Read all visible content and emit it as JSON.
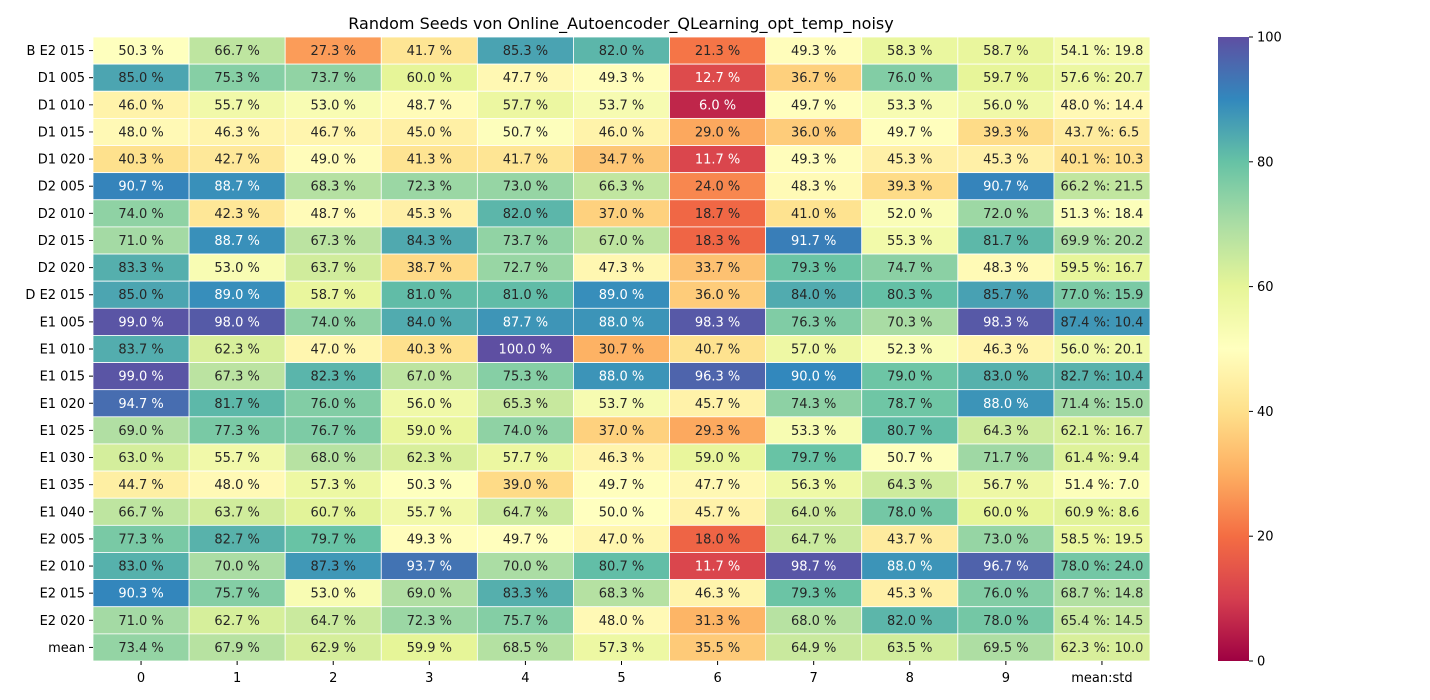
{
  "chart_data": {
    "type": "heatmap",
    "title": "Random Seeds von Online_Autoencoder_QLearning_opt_temp_noisy",
    "xlabel": "",
    "ylabel": "",
    "columns": [
      "0",
      "1",
      "2",
      "3",
      "4",
      "5",
      "6",
      "7",
      "8",
      "9",
      "mean:std"
    ],
    "rows": [
      "B E2 015",
      "D1 005",
      "D1 010",
      "D1 015",
      "D1 020",
      "D2 005",
      "D2 010",
      "D2 015",
      "D2 020",
      "D E2 015",
      "E1 005",
      "E1 010",
      "E1 015",
      "E1 020",
      "E1 025",
      "E1 030",
      "E1 035",
      "E1 040",
      "E2 005",
      "E2 010",
      "E2 015",
      "E2 020",
      "mean"
    ],
    "values": [
      [
        50.3,
        66.7,
        27.3,
        41.7,
        85.3,
        82.0,
        21.3,
        49.3,
        58.3,
        58.7,
        54.1
      ],
      [
        85.0,
        75.3,
        73.7,
        60.0,
        47.7,
        49.3,
        12.7,
        36.7,
        76.0,
        59.7,
        57.6
      ],
      [
        46.0,
        55.7,
        53.0,
        48.7,
        57.7,
        53.7,
        6.0,
        49.7,
        53.3,
        56.0,
        48.0
      ],
      [
        48.0,
        46.3,
        46.7,
        45.0,
        50.7,
        46.0,
        29.0,
        36.0,
        49.7,
        39.3,
        43.7
      ],
      [
        40.3,
        42.7,
        49.0,
        41.3,
        41.7,
        34.7,
        11.7,
        49.3,
        45.3,
        45.3,
        40.1
      ],
      [
        90.7,
        88.7,
        68.3,
        72.3,
        73.0,
        66.3,
        24.0,
        48.3,
        39.3,
        90.7,
        66.2
      ],
      [
        74.0,
        42.3,
        48.7,
        45.3,
        82.0,
        37.0,
        18.7,
        41.0,
        52.0,
        72.0,
        51.3
      ],
      [
        71.0,
        88.7,
        67.3,
        84.3,
        73.7,
        67.0,
        18.3,
        91.7,
        55.3,
        81.7,
        69.9
      ],
      [
        83.3,
        53.0,
        63.7,
        38.7,
        72.7,
        47.3,
        33.7,
        79.3,
        74.7,
        48.3,
        59.5
      ],
      [
        85.0,
        89.0,
        58.7,
        81.0,
        81.0,
        89.0,
        36.0,
        84.0,
        80.3,
        85.7,
        77.0
      ],
      [
        99.0,
        98.0,
        74.0,
        84.0,
        87.7,
        88.0,
        98.3,
        76.3,
        70.3,
        98.3,
        87.4
      ],
      [
        83.7,
        62.3,
        47.0,
        40.3,
        100.0,
        30.7,
        40.7,
        57.0,
        52.3,
        46.3,
        56.0
      ],
      [
        99.0,
        67.3,
        82.3,
        67.0,
        75.3,
        88.0,
        96.3,
        90.0,
        79.0,
        83.0,
        82.7
      ],
      [
        94.7,
        81.7,
        76.0,
        56.0,
        65.3,
        53.7,
        45.7,
        74.3,
        78.7,
        88.0,
        71.4
      ],
      [
        69.0,
        77.3,
        76.7,
        59.0,
        74.0,
        37.0,
        29.3,
        53.3,
        80.7,
        64.3,
        62.1
      ],
      [
        63.0,
        55.7,
        68.0,
        62.3,
        57.7,
        46.3,
        59.0,
        79.7,
        50.7,
        71.7,
        61.4
      ],
      [
        44.7,
        48.0,
        57.3,
        50.3,
        39.0,
        49.7,
        47.7,
        56.3,
        64.3,
        56.7,
        51.4
      ],
      [
        66.7,
        63.7,
        60.7,
        55.7,
        64.7,
        50.0,
        45.7,
        64.0,
        78.0,
        60.0,
        60.9
      ],
      [
        77.3,
        82.7,
        79.7,
        49.3,
        49.7,
        47.0,
        18.0,
        64.7,
        43.7,
        73.0,
        58.5
      ],
      [
        83.0,
        70.0,
        87.3,
        93.7,
        70.0,
        80.7,
        11.7,
        98.7,
        88.0,
        96.7,
        78.0
      ],
      [
        90.3,
        75.7,
        53.0,
        69.0,
        83.3,
        68.3,
        46.3,
        79.3,
        45.3,
        76.0,
        68.7
      ],
      [
        71.0,
        62.7,
        64.7,
        72.3,
        75.7,
        48.0,
        31.3,
        68.0,
        82.0,
        78.0,
        65.4
      ],
      [
        73.4,
        67.9,
        62.9,
        59.9,
        68.5,
        57.3,
        35.5,
        64.9,
        63.5,
        69.5,
        62.3
      ]
    ],
    "cell_labels": [
      [
        "50.3 %",
        "66.7 %",
        "27.3 %",
        "41.7 %",
        "85.3 %",
        "82.0 %",
        "21.3 %",
        "49.3 %",
        "58.3 %",
        "58.7 %",
        "54.1 %: 19.8"
      ],
      [
        "85.0 %",
        "75.3 %",
        "73.7 %",
        "60.0 %",
        "47.7 %",
        "49.3 %",
        "12.7 %",
        "36.7 %",
        "76.0 %",
        "59.7 %",
        "57.6 %: 20.7"
      ],
      [
        "46.0 %",
        "55.7 %",
        "53.0 %",
        "48.7 %",
        "57.7 %",
        "53.7 %",
        "6.0 %",
        "49.7 %",
        "53.3 %",
        "56.0 %",
        "48.0 %: 14.4"
      ],
      [
        "48.0 %",
        "46.3 %",
        "46.7 %",
        "45.0 %",
        "50.7 %",
        "46.0 %",
        "29.0 %",
        "36.0 %",
        "49.7 %",
        "39.3 %",
        "43.7 %: 6.5"
      ],
      [
        "40.3 %",
        "42.7 %",
        "49.0 %",
        "41.3 %",
        "41.7 %",
        "34.7 %",
        "11.7 %",
        "49.3 %",
        "45.3 %",
        "45.3 %",
        "40.1 %: 10.3"
      ],
      [
        "90.7 %",
        "88.7 %",
        "68.3 %",
        "72.3 %",
        "73.0 %",
        "66.3 %",
        "24.0 %",
        "48.3 %",
        "39.3 %",
        "90.7 %",
        "66.2 %: 21.5"
      ],
      [
        "74.0 %",
        "42.3 %",
        "48.7 %",
        "45.3 %",
        "82.0 %",
        "37.0 %",
        "18.7 %",
        "41.0 %",
        "52.0 %",
        "72.0 %",
        "51.3 %: 18.4"
      ],
      [
        "71.0 %",
        "88.7 %",
        "67.3 %",
        "84.3 %",
        "73.7 %",
        "67.0 %",
        "18.3 %",
        "91.7 %",
        "55.3 %",
        "81.7 %",
        "69.9 %: 20.2"
      ],
      [
        "83.3 %",
        "53.0 %",
        "63.7 %",
        "38.7 %",
        "72.7 %",
        "47.3 %",
        "33.7 %",
        "79.3 %",
        "74.7 %",
        "48.3 %",
        "59.5 %: 16.7"
      ],
      [
        "85.0 %",
        "89.0 %",
        "58.7 %",
        "81.0 %",
        "81.0 %",
        "89.0 %",
        "36.0 %",
        "84.0 %",
        "80.3 %",
        "85.7 %",
        "77.0 %: 15.9"
      ],
      [
        "99.0 %",
        "98.0 %",
        "74.0 %",
        "84.0 %",
        "87.7 %",
        "88.0 %",
        "98.3 %",
        "76.3 %",
        "70.3 %",
        "98.3 %",
        "87.4 %: 10.4"
      ],
      [
        "83.7 %",
        "62.3 %",
        "47.0 %",
        "40.3 %",
        "100.0 %",
        "30.7 %",
        "40.7 %",
        "57.0 %",
        "52.3 %",
        "46.3 %",
        "56.0 %: 20.1"
      ],
      [
        "99.0 %",
        "67.3 %",
        "82.3 %",
        "67.0 %",
        "75.3 %",
        "88.0 %",
        "96.3 %",
        "90.0 %",
        "79.0 %",
        "83.0 %",
        "82.7 %: 10.4"
      ],
      [
        "94.7 %",
        "81.7 %",
        "76.0 %",
        "56.0 %",
        "65.3 %",
        "53.7 %",
        "45.7 %",
        "74.3 %",
        "78.7 %",
        "88.0 %",
        "71.4 %: 15.0"
      ],
      [
        "69.0 %",
        "77.3 %",
        "76.7 %",
        "59.0 %",
        "74.0 %",
        "37.0 %",
        "29.3 %",
        "53.3 %",
        "80.7 %",
        "64.3 %",
        "62.1 %: 16.7"
      ],
      [
        "63.0 %",
        "55.7 %",
        "68.0 %",
        "62.3 %",
        "57.7 %",
        "46.3 %",
        "59.0 %",
        "79.7 %",
        "50.7 %",
        "71.7 %",
        "61.4 %: 9.4"
      ],
      [
        "44.7 %",
        "48.0 %",
        "57.3 %",
        "50.3 %",
        "39.0 %",
        "49.7 %",
        "47.7 %",
        "56.3 %",
        "64.3 %",
        "56.7 %",
        "51.4 %: 7.0"
      ],
      [
        "66.7 %",
        "63.7 %",
        "60.7 %",
        "55.7 %",
        "64.7 %",
        "50.0 %",
        "45.7 %",
        "64.0 %",
        "78.0 %",
        "60.0 %",
        "60.9 %: 8.6"
      ],
      [
        "77.3 %",
        "82.7 %",
        "79.7 %",
        "49.3 %",
        "49.7 %",
        "47.0 %",
        "18.0 %",
        "64.7 %",
        "43.7 %",
        "73.0 %",
        "58.5 %: 19.5"
      ],
      [
        "83.0 %",
        "70.0 %",
        "87.3 %",
        "93.7 %",
        "70.0 %",
        "80.7 %",
        "11.7 %",
        "98.7 %",
        "88.0 %",
        "96.7 %",
        "78.0 %: 24.0"
      ],
      [
        "90.3 %",
        "75.7 %",
        "53.0 %",
        "69.0 %",
        "83.3 %",
        "68.3 %",
        "46.3 %",
        "79.3 %",
        "45.3 %",
        "76.0 %",
        "68.7 %: 14.8"
      ],
      [
        "71.0 %",
        "62.7 %",
        "64.7 %",
        "72.3 %",
        "75.7 %",
        "48.0 %",
        "31.3 %",
        "68.0 %",
        "82.0 %",
        "78.0 %",
        "65.4 %: 14.5"
      ],
      [
        "73.4 %",
        "67.9 %",
        "62.9 %",
        "59.9 %",
        "68.5 %",
        "57.3 %",
        "35.5 %",
        "64.9 %",
        "63.5 %",
        "69.5 %",
        "62.3 %: 10.0"
      ]
    ],
    "colorbar": {
      "range": [
        0,
        100
      ],
      "ticks": [
        "0",
        "20",
        "40",
        "60",
        "80",
        "100"
      ],
      "colormap": "Spectral"
    },
    "colors": {
      "cell_border": "#ffffff",
      "text_dark": "#262626",
      "text_light": "#ffffff"
    },
    "grid": false
  }
}
